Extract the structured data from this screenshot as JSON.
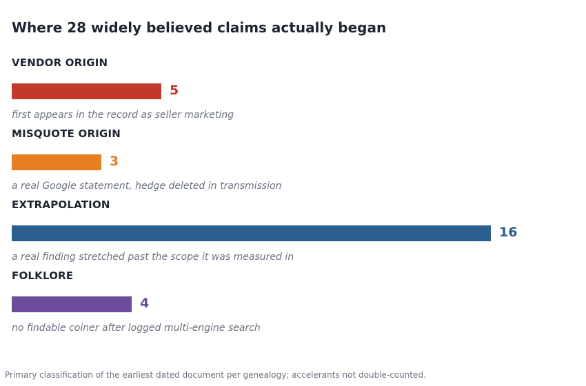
{
  "chart_data": {
    "type": "bar",
    "orientation": "horizontal",
    "title": "Where 28 widely believed claims actually began",
    "categories": [
      "VENDOR ORIGIN",
      "MISQUOTE ORIGIN",
      "EXTRAPOLATION",
      "FOLKLORE"
    ],
    "values": [
      5,
      3,
      16,
      4
    ],
    "descriptions": [
      "first appears in the record as seller marketing",
      "a real Google statement, hedge deleted in transmission",
      "a real finding stretched past the scope it was measured in",
      "no findable coiner after logged multi-engine search"
    ],
    "colors": [
      "#c0392b",
      "#e67e22",
      "#2c5f8f",
      "#6b4c9a"
    ],
    "xlim": [
      0,
      16
    ],
    "grid": false,
    "legend": "none",
    "footnote": "Primary classification of the earliest dated document per genealogy; accelerants not double-counted."
  }
}
